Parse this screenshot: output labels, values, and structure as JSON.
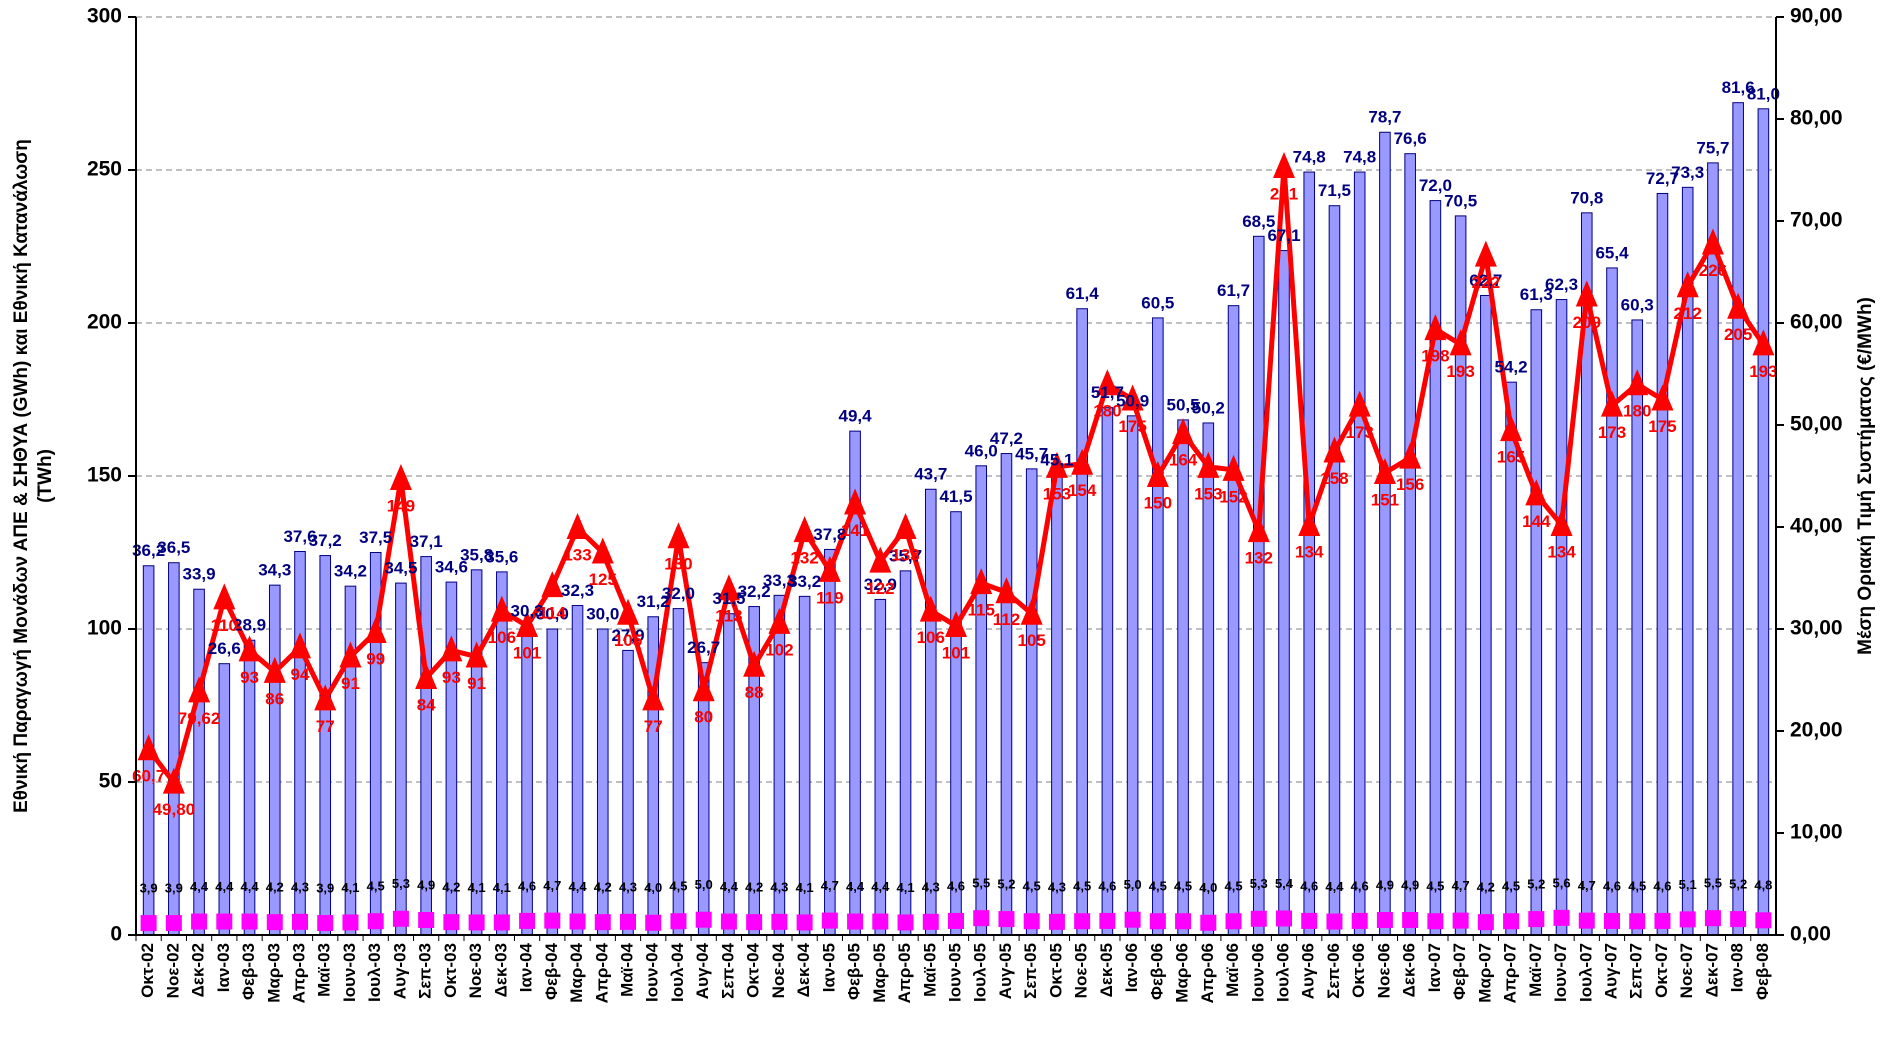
{
  "chart_data": {
    "type": "bar-line",
    "y_title": "Εθνική Παραγωγή Μονάδων ΑΠΕ & ΣΗΘΥΑ (GWh) και Εθνική Κατανάλωση",
    "y_title_2": "(TWh)",
    "y2_title": "Μέση Οριακή Τιμή Συστήματος (€/MWh)",
    "categories": [
      "Οκτ-02",
      "Νοε-02",
      "Δεκ-02",
      "Ιαν-03",
      "Φεβ-03",
      "Μαρ-03",
      "Απρ-03",
      "Μαϊ-03",
      "Ιουν-03",
      "Ιουλ-03",
      "Αυγ-03",
      "Σεπ-03",
      "Οκτ-03",
      "Νοε-03",
      "Δεκ-03",
      "Ιαν-04",
      "Φεβ-04",
      "Μαρ-04",
      "Απρ-04",
      "Μαϊ-04",
      "Ιουν-04",
      "Ιουλ-04",
      "Αυγ-04",
      "Σεπ-04",
      "Οκτ-04",
      "Νοε-04",
      "Δεκ-04",
      "Ιαν-05",
      "Φεβ-05",
      "Μαρ-05",
      "Απρ-05",
      "Μαϊ-05",
      "Ιουν-05",
      "Ιουλ-05",
      "Αυγ-05",
      "Σεπ-05",
      "Οκτ-05",
      "Νοε-05",
      "Δεκ-05",
      "Ιαν-06",
      "Φεβ-06",
      "Μαρ-06",
      "Απρ-06",
      "Μαϊ-06",
      "Ιουν-06",
      "Ιουλ-06",
      "Αυγ-06",
      "Σεπ-06",
      "Οκτ-06",
      "Νοε-06",
      "Δεκ-06",
      "Ιαν-07",
      "Φεβ-07",
      "Μαρ-07",
      "Απρ-07",
      "Μαϊ-07",
      "Ιουν-07",
      "Ιουλ-07",
      "Αυγ-07",
      "Σεπ-07",
      "Οκτ-07",
      "Νοε-07",
      "Δεκ-07",
      "Ιαν-08",
      "Φεβ-08"
    ],
    "ylim": [
      0,
      300
    ],
    "yticks": [
      0,
      50,
      100,
      150,
      200,
      250,
      300
    ],
    "y2lim": [
      0,
      90
    ],
    "y2ticks": [
      {
        "value": 0,
        "label": "0,00"
      },
      {
        "value": 10,
        "label": "10,00"
      },
      {
        "value": 20,
        "label": "20,00"
      },
      {
        "value": 30,
        "label": "30,00"
      },
      {
        "value": 40,
        "label": "40,00"
      },
      {
        "value": 50,
        "label": "50,00"
      },
      {
        "value": 60,
        "label": "60,00"
      },
      {
        "value": 70,
        "label": "70,00"
      },
      {
        "value": 80,
        "label": "80,00"
      },
      {
        "value": 90,
        "label": "90,00"
      }
    ],
    "grid": true,
    "series": [
      {
        "kind": "bar",
        "axis": "y2",
        "color": "#9999ff",
        "values": [
          36.2,
          36.5,
          33.9,
          26.6,
          28.9,
          34.3,
          37.6,
          37.2,
          34.2,
          37.5,
          34.5,
          37.1,
          34.6,
          35.8,
          35.6,
          30.3,
          30.0,
          32.3,
          30.0,
          27.9,
          31.2,
          32.0,
          26.7,
          31.5,
          32.2,
          33.3,
          33.2,
          37.8,
          49.4,
          32.9,
          35.7,
          43.7,
          41.5,
          46.0,
          47.2,
          45.7,
          45.1,
          61.4,
          51.7,
          50.9,
          60.5,
          50.5,
          50.2,
          61.7,
          68.5,
          67.1,
          74.8,
          71.5,
          74.8,
          78.7,
          76.6,
          72.0,
          70.5,
          62.7,
          54.2,
          61.3,
          62.3,
          70.8,
          65.4,
          60.3,
          72.7,
          73.3,
          75.7,
          81.6,
          81.0
        ],
        "value_labels": [
          "36,2",
          "36,5",
          "33,9",
          "26,6",
          "28,9",
          "34,3",
          "37,6",
          "37,2",
          "34,2",
          "37,5",
          "34,5",
          "37,1",
          "34,6",
          "35,8",
          "35,6",
          "30,3",
          "30,0",
          "32,3",
          "30,0",
          "27,9",
          "31,2",
          "32,0",
          "26,7",
          "31,5",
          "32,2",
          "33,3",
          "33,2",
          "37,8",
          "49,4",
          "32,9",
          "35,7",
          "43,7",
          "41,5",
          "46,0",
          "47,2",
          "45,7",
          "45,1",
          "61,4",
          "51,7",
          "50,9",
          "60,5",
          "50,5",
          "50,2",
          "61,7",
          "68,5",
          "67,1",
          "74,8",
          "71,5",
          "74,8",
          "78,7",
          "76,6",
          "72,0",
          "70,5",
          "62,7",
          "54,2",
          "61,3",
          "62,3",
          "70,8",
          "65,4",
          "60,3",
          "72,7",
          "73,3",
          "75,7",
          "81,6",
          "81,0"
        ]
      },
      {
        "kind": "line",
        "axis": "y",
        "color": "#ff0000",
        "marker": "triangle",
        "values": [
          60.7,
          49.8,
          79.62,
          110,
          93,
          86,
          94,
          77,
          91,
          99,
          149,
          84,
          93,
          91,
          106,
          101,
          114,
          133,
          125,
          105,
          77,
          130,
          80,
          113,
          88,
          102,
          132,
          119,
          141,
          122,
          133,
          106,
          101,
          115,
          112,
          105,
          153,
          154,
          180,
          175,
          150,
          164,
          153,
          152,
          132,
          251,
          134,
          158,
          173,
          151,
          156,
          198,
          193,
          222,
          165,
          144,
          134,
          209,
          173,
          180,
          175,
          212,
          226,
          205,
          193
        ],
        "value_labels": [
          "60,7",
          "49,80",
          "79,62",
          "110",
          "93",
          "86",
          "94",
          "77",
          "91",
          "99",
          "149",
          "84",
          "93",
          "91",
          "106",
          "101",
          "114",
          "133",
          "125",
          "105",
          "77",
          "130",
          "80",
          "113",
          "88",
          "102",
          "132",
          "119",
          "141",
          "122",
          "133",
          "106",
          "101",
          "115",
          "112",
          "105",
          "153",
          "154",
          "180",
          "175",
          "150",
          "164",
          "153",
          "152",
          "132",
          "251",
          "134",
          "158",
          "173",
          "151",
          "156",
          "198",
          "193",
          "222",
          "165",
          "144",
          "134",
          "209",
          "173",
          "180",
          "175",
          "212",
          "226",
          "205",
          "193"
        ]
      },
      {
        "kind": "scatter",
        "axis": "y",
        "color": "#ff00ff",
        "marker": "square",
        "values": [
          3.9,
          3.9,
          4.4,
          4.4,
          4.4,
          4.2,
          4.3,
          3.9,
          4.1,
          4.5,
          5.3,
          4.9,
          4.2,
          4.1,
          4.1,
          4.6,
          4.7,
          4.4,
          4.2,
          4.3,
          4.0,
          4.5,
          5.0,
          4.4,
          4.2,
          4.3,
          4.1,
          4.7,
          4.4,
          4.4,
          4.1,
          4.3,
          4.6,
          5.5,
          5.2,
          4.5,
          4.3,
          4.5,
          4.6,
          5.0,
          4.5,
          4.5,
          4.0,
          4.5,
          5.3,
          5.4,
          4.6,
          4.4,
          4.6,
          4.9,
          4.9,
          4.5,
          4.7,
          4.2,
          4.5,
          5.2,
          5.6,
          4.7,
          4.6,
          4.5,
          4.6,
          5.1,
          5.5,
          5.2,
          4.8
        ],
        "value_labels": [
          "3,9",
          "3,9",
          "4,4",
          "4,4",
          "4,4",
          "4,2",
          "4,3",
          "3,9",
          "4,1",
          "4,5",
          "5,3",
          "4,9",
          "4,2",
          "4,1",
          "4,1",
          "4,6",
          "4,7",
          "4,4",
          "4,2",
          "4,3",
          "4,0",
          "4,5",
          "5,0",
          "4,4",
          "4,2",
          "4,3",
          "4,1",
          "4,7",
          "4,4",
          "4,4",
          "4,1",
          "4,3",
          "4,6",
          "5,5",
          "5,2",
          "4,5",
          "4,3",
          "4,5",
          "4,6",
          "5,0",
          "4,5",
          "4,5",
          "4,0",
          "4,5",
          "5,3",
          "5,4",
          "4,6",
          "4,4",
          "4,6",
          "4,9",
          "4,9",
          "4,5",
          "4,7",
          "4,2",
          "4,5",
          "5,2",
          "5,6",
          "4,7",
          "4,6",
          "4,5",
          "4,6",
          "5,1",
          "5,5",
          "5,2",
          "4,8"
        ]
      }
    ]
  }
}
